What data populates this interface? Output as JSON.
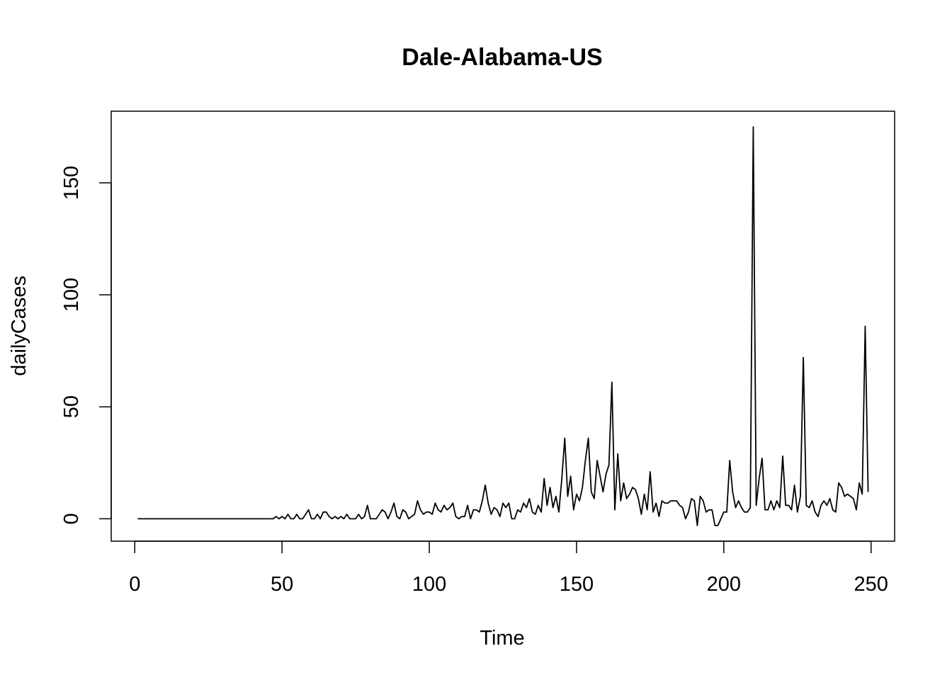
{
  "chart_data": {
    "type": "line",
    "title": "Dale-Alabama-US",
    "xlabel": "Time",
    "ylabel": "dailyCases",
    "xlim": [
      -8,
      258
    ],
    "ylim": [
      -10,
      182
    ],
    "xticks": [
      0,
      50,
      100,
      150,
      200,
      250
    ],
    "yticks": [
      0,
      50,
      100,
      150
    ],
    "grid": false,
    "legend": "none",
    "line_color": "#000000",
    "series": [
      {
        "values": [
          0,
          0,
          0,
          0,
          0,
          0,
          0,
          0,
          0,
          0,
          0,
          0,
          0,
          0,
          0,
          0,
          0,
          0,
          0,
          0,
          0,
          0,
          0,
          0,
          0,
          0,
          0,
          0,
          0,
          0,
          0,
          0,
          0,
          0,
          0,
          0,
          0,
          0,
          0,
          0,
          0,
          0,
          0,
          0,
          0,
          0,
          0,
          1,
          0,
          1,
          0,
          2,
          0,
          0,
          2,
          0,
          0,
          2,
          4,
          0,
          0,
          2,
          0,
          3,
          3,
          1,
          0,
          1,
          0,
          1,
          0,
          2,
          0,
          0,
          0,
          2,
          0,
          1,
          6,
          0,
          0,
          0,
          2,
          4,
          3,
          0,
          3,
          7,
          1,
          0,
          4,
          3,
          0,
          1,
          2,
          8,
          4,
          2,
          3,
          3,
          2,
          7,
          4,
          3,
          6,
          4,
          5,
          7,
          1,
          0,
          1,
          1,
          6,
          0,
          4,
          4,
          3,
          8,
          15,
          7,
          2,
          5,
          4,
          1,
          7,
          5,
          7,
          0,
          0,
          4,
          3,
          7,
          5,
          9,
          3,
          2,
          6,
          3,
          18,
          6,
          14,
          5,
          10,
          3,
          18,
          36,
          10,
          19,
          4,
          11,
          8,
          14,
          26,
          36,
          12,
          9,
          26,
          19,
          12,
          20,
          24,
          61,
          4,
          29,
          8,
          16,
          9,
          11,
          14,
          13,
          9,
          2,
          11,
          4,
          21,
          3,
          7,
          1,
          8,
          7,
          7,
          8,
          8,
          8,
          6,
          5,
          0,
          3,
          9,
          8,
          -3,
          10,
          8,
          3,
          4,
          4,
          -3,
          -3,
          0,
          3,
          3,
          26,
          12,
          5,
          8,
          5,
          3,
          3,
          5,
          175,
          6,
          18,
          27,
          4,
          4,
          8,
          4,
          8,
          5,
          28,
          6,
          6,
          4,
          15,
          3,
          10,
          72,
          6,
          5,
          8,
          3,
          1,
          6,
          8,
          6,
          9,
          4,
          3,
          16,
          14,
          10,
          11,
          10,
          9,
          4,
          16,
          11,
          86,
          12
        ]
      }
    ]
  }
}
